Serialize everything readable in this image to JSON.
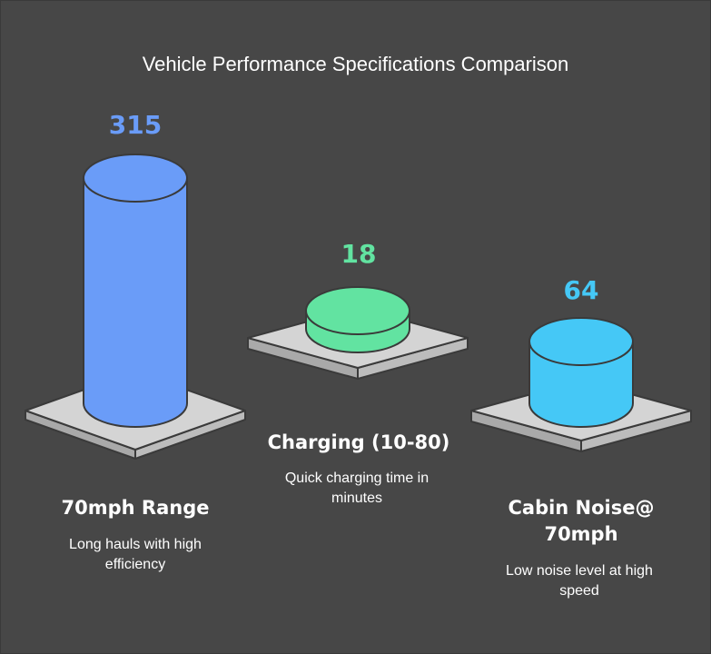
{
  "title": "Vehicle Performance Specifications Comparison",
  "colors": {
    "background": "#474747",
    "range": "#6a9cf8",
    "charging": "#62e3a1",
    "noise": "#45c8f6",
    "platform_top": "#d4d4d4",
    "platform_side": "#a9a9a9"
  },
  "chart_data": {
    "type": "bar",
    "title": "Vehicle Performance Specifications Comparison",
    "categories": [
      "70mph Range",
      "Charging (10-80)",
      "Cabin Noise@ 70mph"
    ],
    "values": [
      315,
      18,
      64
    ],
    "value_labels": [
      "315",
      "18",
      "64"
    ],
    "descriptions": [
      "Long hauls with high efficiency",
      "Quick charging time in minutes",
      "Low noise level at high speed"
    ],
    "style": "3d-cylinders-on-platforms",
    "legend": "none",
    "grid": false
  }
}
